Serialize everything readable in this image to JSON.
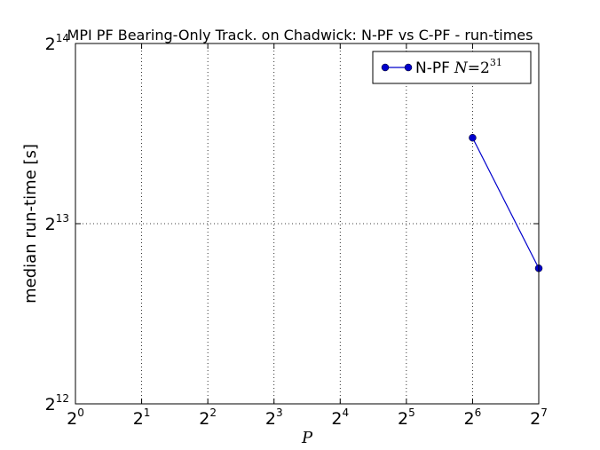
{
  "chart_data": {
    "type": "line",
    "title": "MPI PF Bearing-Only Track. on Chadwick: N-PF vs C-PF - run-times",
    "xlabel": "P",
    "ylabel": "median run-time [s]",
    "x_scale": "log2",
    "y_scale": "log2",
    "x_ticks": [
      {
        "base": "2",
        "exp": "0"
      },
      {
        "base": "2",
        "exp": "1"
      },
      {
        "base": "2",
        "exp": "2"
      },
      {
        "base": "2",
        "exp": "3"
      },
      {
        "base": "2",
        "exp": "4"
      },
      {
        "base": "2",
        "exp": "5"
      },
      {
        "base": "2",
        "exp": "6"
      },
      {
        "base": "2",
        "exp": "7"
      }
    ],
    "y_ticks": [
      {
        "base": "2",
        "exp": "12"
      },
      {
        "base": "2",
        "exp": "13"
      },
      {
        "base": "2",
        "exp": "14"
      }
    ],
    "xlim": [
      1,
      128
    ],
    "ylim": [
      4096,
      16384
    ],
    "grid": true,
    "legend_position": "top-right",
    "series": [
      {
        "name": "N-PF",
        "legend_math": {
          "var": "N",
          "op": "=",
          "base": "2",
          "exp": "31"
        },
        "color": "#0000cc",
        "marker": "circle",
        "x": [
          64,
          128
        ],
        "y": [
          11400,
          6900
        ]
      }
    ]
  }
}
